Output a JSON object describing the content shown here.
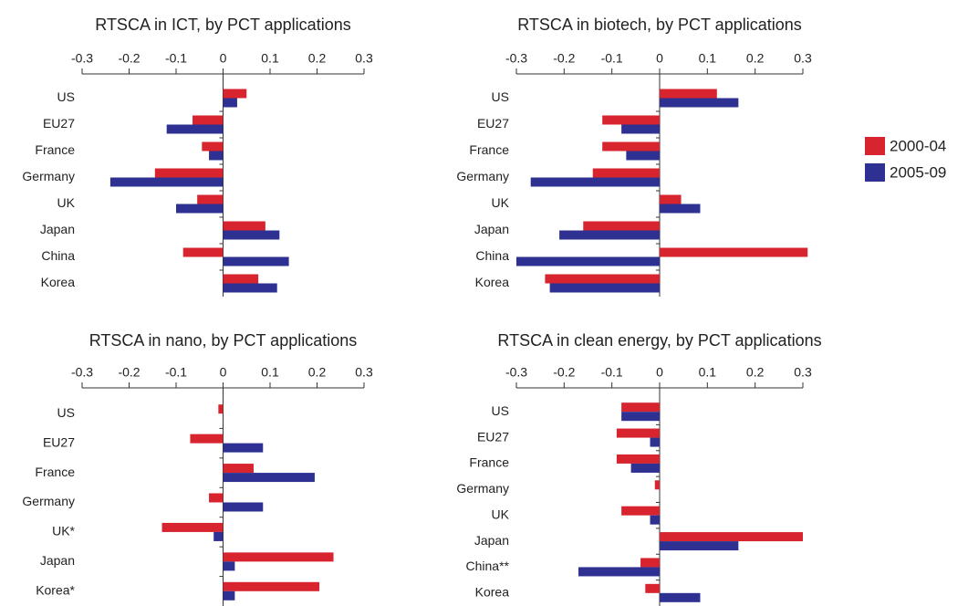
{
  "chart_data": [
    {
      "type": "bar",
      "orientation": "horizontal",
      "title": "RTSCA in ICT, by PCT applications",
      "categories": [
        "US",
        "EU27",
        "France",
        "Germany",
        "UK",
        "Japan",
        "China",
        "Korea"
      ],
      "series": [
        {
          "color": "#d7242e",
          "values": [
            0.05,
            -0.065,
            -0.045,
            -0.145,
            -0.055,
            0.09,
            -0.085,
            0.075
          ]
        },
        {
          "color": "#2e3192",
          "values": [
            0.03,
            -0.12,
            -0.03,
            -0.24,
            -0.1,
            0.12,
            0.14,
            0.115
          ]
        }
      ],
      "xlim": [
        -0.3,
        0.3
      ],
      "xticks": [
        -0.3,
        -0.2,
        -0.1,
        0,
        0.1,
        0.2,
        0.3
      ]
    },
    {
      "type": "bar",
      "orientation": "horizontal",
      "title": "RTSCA in biotech, by PCT applications",
      "categories": [
        "US",
        "EU27",
        "France",
        "Germany",
        "UK",
        "Japan",
        "China",
        "Korea"
      ],
      "series": [
        {
          "name": "2000-04",
          "color": "#d7242e",
          "values": [
            0.12,
            -0.12,
            -0.12,
            -0.14,
            0.045,
            -0.16,
            0.31,
            -0.24
          ]
        },
        {
          "name": "2005-09",
          "color": "#2e3192",
          "values": [
            0.165,
            -0.08,
            -0.07,
            -0.27,
            0.085,
            -0.21,
            -0.3,
            -0.23
          ]
        }
      ],
      "xlim": [
        -0.3,
        0.3
      ],
      "xticks": [
        -0.3,
        -0.2,
        -0.1,
        0,
        0.1,
        0.2,
        0.3
      ],
      "legend": "right"
    },
    {
      "type": "bar",
      "orientation": "horizontal",
      "title": "RTSCA in nano, by PCT applications",
      "categories": [
        "US",
        "EU27",
        "France",
        "Germany",
        "UK*",
        "Japan",
        "Korea*"
      ],
      "series": [
        {
          "color": "#d7242e",
          "values": [
            -0.01,
            -0.07,
            0.065,
            -0.03,
            -0.13,
            0.235,
            0.205
          ]
        },
        {
          "color": "#2e3192",
          "values": [
            0,
            0.085,
            0.195,
            0.085,
            -0.02,
            0.025,
            0.025
          ]
        }
      ],
      "xlim": [
        -0.3,
        0.3
      ],
      "xticks": [
        -0.3,
        -0.2,
        -0.1,
        0,
        0.1,
        0.2,
        0.3
      ]
    },
    {
      "type": "bar",
      "orientation": "horizontal",
      "title": "RTSCA in clean energy, by PCT applications",
      "categories": [
        "US",
        "EU27",
        "France",
        "Germany",
        "UK",
        "Japan",
        "China**",
        "Korea"
      ],
      "series": [
        {
          "color": "#d7242e",
          "values": [
            -0.08,
            -0.09,
            -0.09,
            -0.01,
            -0.08,
            0.3,
            -0.04,
            -0.03
          ]
        },
        {
          "color": "#2e3192",
          "values": [
            -0.08,
            -0.02,
            -0.06,
            0,
            -0.02,
            0.165,
            -0.17,
            0.085
          ]
        }
      ],
      "xlim": [
        -0.3,
        0.3
      ],
      "xticks": [
        -0.3,
        -0.2,
        -0.1,
        0,
        0.1,
        0.2,
        0.3
      ]
    }
  ]
}
